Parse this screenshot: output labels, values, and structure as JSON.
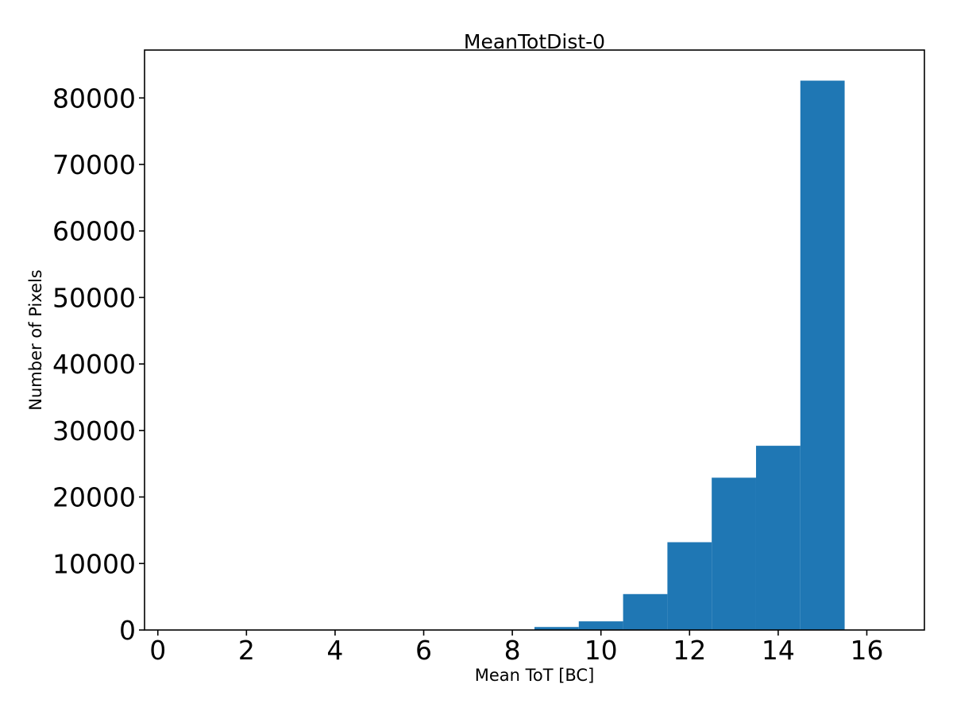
{
  "figure": {
    "background": "#ffffff"
  },
  "chart_data": {
    "type": "bar",
    "title": "MeanTotDist-0",
    "xlabel": "Mean ToT [BC]",
    "ylabel": "Number of Pixels",
    "bar_color": "#1f77b4",
    "axis_color": "#000000",
    "bin_edges": [
      8.5,
      9.5,
      10.5,
      11.5,
      12.5,
      13.5,
      14.5,
      15.5
    ],
    "counts": [
      450,
      1300,
      5400,
      13200,
      22900,
      27700,
      82600
    ],
    "xlim": [
      -0.3,
      17.3
    ],
    "ylim": [
      0,
      87200
    ],
    "xticks": [
      0,
      2,
      4,
      6,
      8,
      10,
      12,
      14,
      16
    ],
    "yticks": [
      0,
      10000,
      20000,
      30000,
      40000,
      50000,
      60000,
      70000,
      80000
    ],
    "grid": false,
    "legend": "none"
  }
}
